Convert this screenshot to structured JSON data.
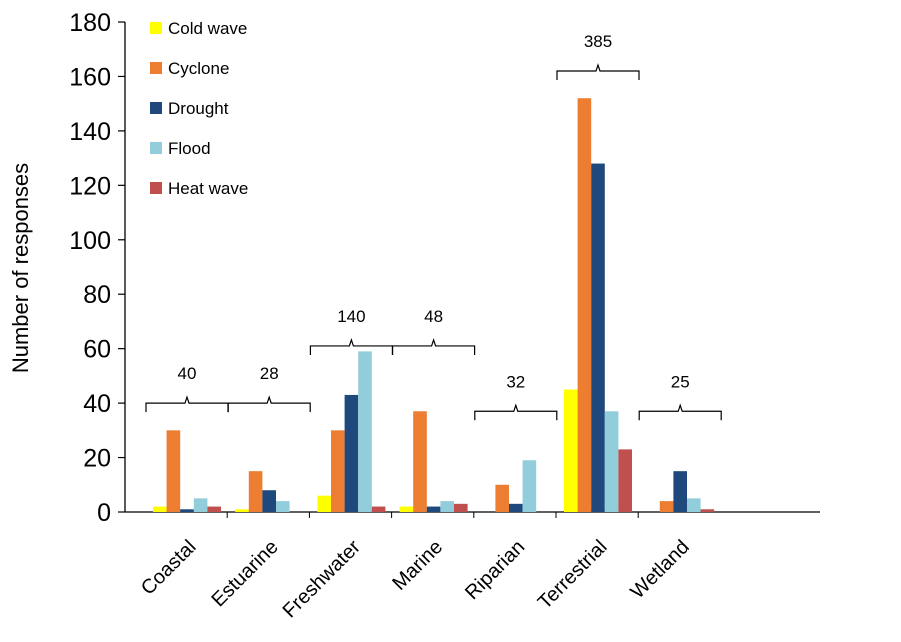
{
  "chart_data": {
    "type": "bar",
    "title": "",
    "xlabel": "",
    "ylabel": "Number of responses",
    "ylim": [
      0,
      180
    ],
    "yticks": [
      0,
      20,
      40,
      60,
      80,
      100,
      120,
      140,
      160,
      180
    ],
    "grid": false,
    "legend_position": "top-left",
    "categories": [
      "Coastal",
      "Estuarine",
      "Freshwater",
      "Marine",
      "Riparian",
      "Terrestrial",
      "Wetland"
    ],
    "series": [
      {
        "name": "Cold wave",
        "color": "#ffff00",
        "values": [
          2,
          1,
          6,
          2,
          0,
          45,
          0
        ]
      },
      {
        "name": "Cyclone",
        "color": "#ed7d31",
        "values": [
          30,
          15,
          30,
          37,
          10,
          152,
          4
        ]
      },
      {
        "name": "Drought",
        "color": "#1f497d",
        "values": [
          1,
          8,
          43,
          2,
          3,
          128,
          15
        ]
      },
      {
        "name": "Flood",
        "color": "#92cddc",
        "values": [
          5,
          4,
          59,
          4,
          19,
          37,
          5
        ]
      },
      {
        "name": "Heat wave",
        "color": "#c0504d",
        "values": [
          2,
          0,
          2,
          3,
          0,
          23,
          1
        ]
      }
    ],
    "group_totals": [
      {
        "category": "Coastal",
        "label": "40",
        "bracket_level": 40
      },
      {
        "category": "Estuarine",
        "label": "28",
        "bracket_level": 40
      },
      {
        "category": "Freshwater",
        "label": "140",
        "bracket_level": 61
      },
      {
        "category": "Marine",
        "label": "48",
        "bracket_level": 61
      },
      {
        "category": "Riparian",
        "label": "32",
        "bracket_level": 37
      },
      {
        "category": "Terrestrial",
        "label": "385",
        "bracket_level": 162
      },
      {
        "category": "Wetland",
        "label": "25",
        "bracket_level": 37
      }
    ]
  }
}
